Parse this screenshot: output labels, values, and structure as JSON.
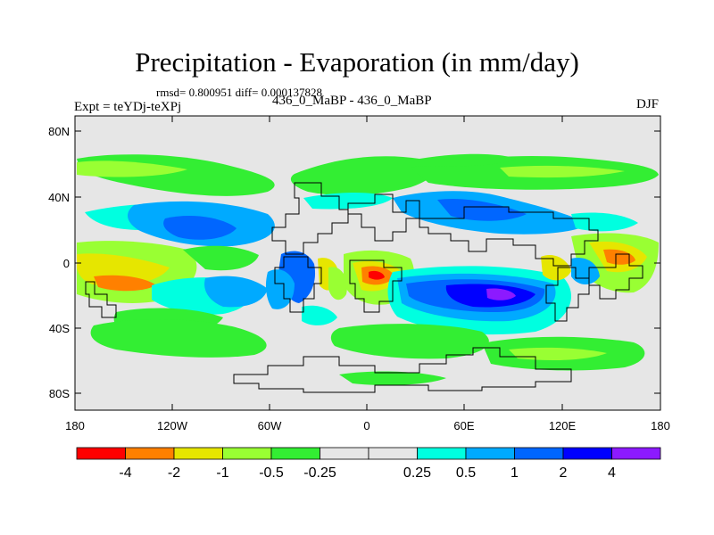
{
  "title": "Precipitation - Evaporation (in mm/day)",
  "stats": "rmsd= 0.800951 diff= 0.000137828",
  "expt": "Expt = teYDj-teXPj",
  "center_label": "436_0_MaBP - 436_0_MaBP",
  "season": "DJF",
  "axes": {
    "lat_ticks": [
      "80N",
      "40N",
      "0",
      "40S",
      "80S"
    ],
    "lon_ticks": [
      "180",
      "120W",
      "60W",
      "0",
      "60E",
      "120E",
      "180"
    ]
  },
  "colorbar": {
    "colors": [
      "#ff0000",
      "#ff8000",
      "#e6e600",
      "#99ff33",
      "#33ee33",
      "#e6e6e6",
      "#e6e6e6",
      "#00ffe0",
      "#00aaff",
      "#0066ff",
      "#0000ff",
      "#8c1aff"
    ],
    "labels": [
      "-4",
      "-2",
      "-1",
      "-0.5",
      "-0.25",
      "0.25",
      "0.5",
      "1",
      "2",
      "4"
    ]
  },
  "colors": {
    "land_bg": "#e6e6e6",
    "coast": "#000000"
  }
}
